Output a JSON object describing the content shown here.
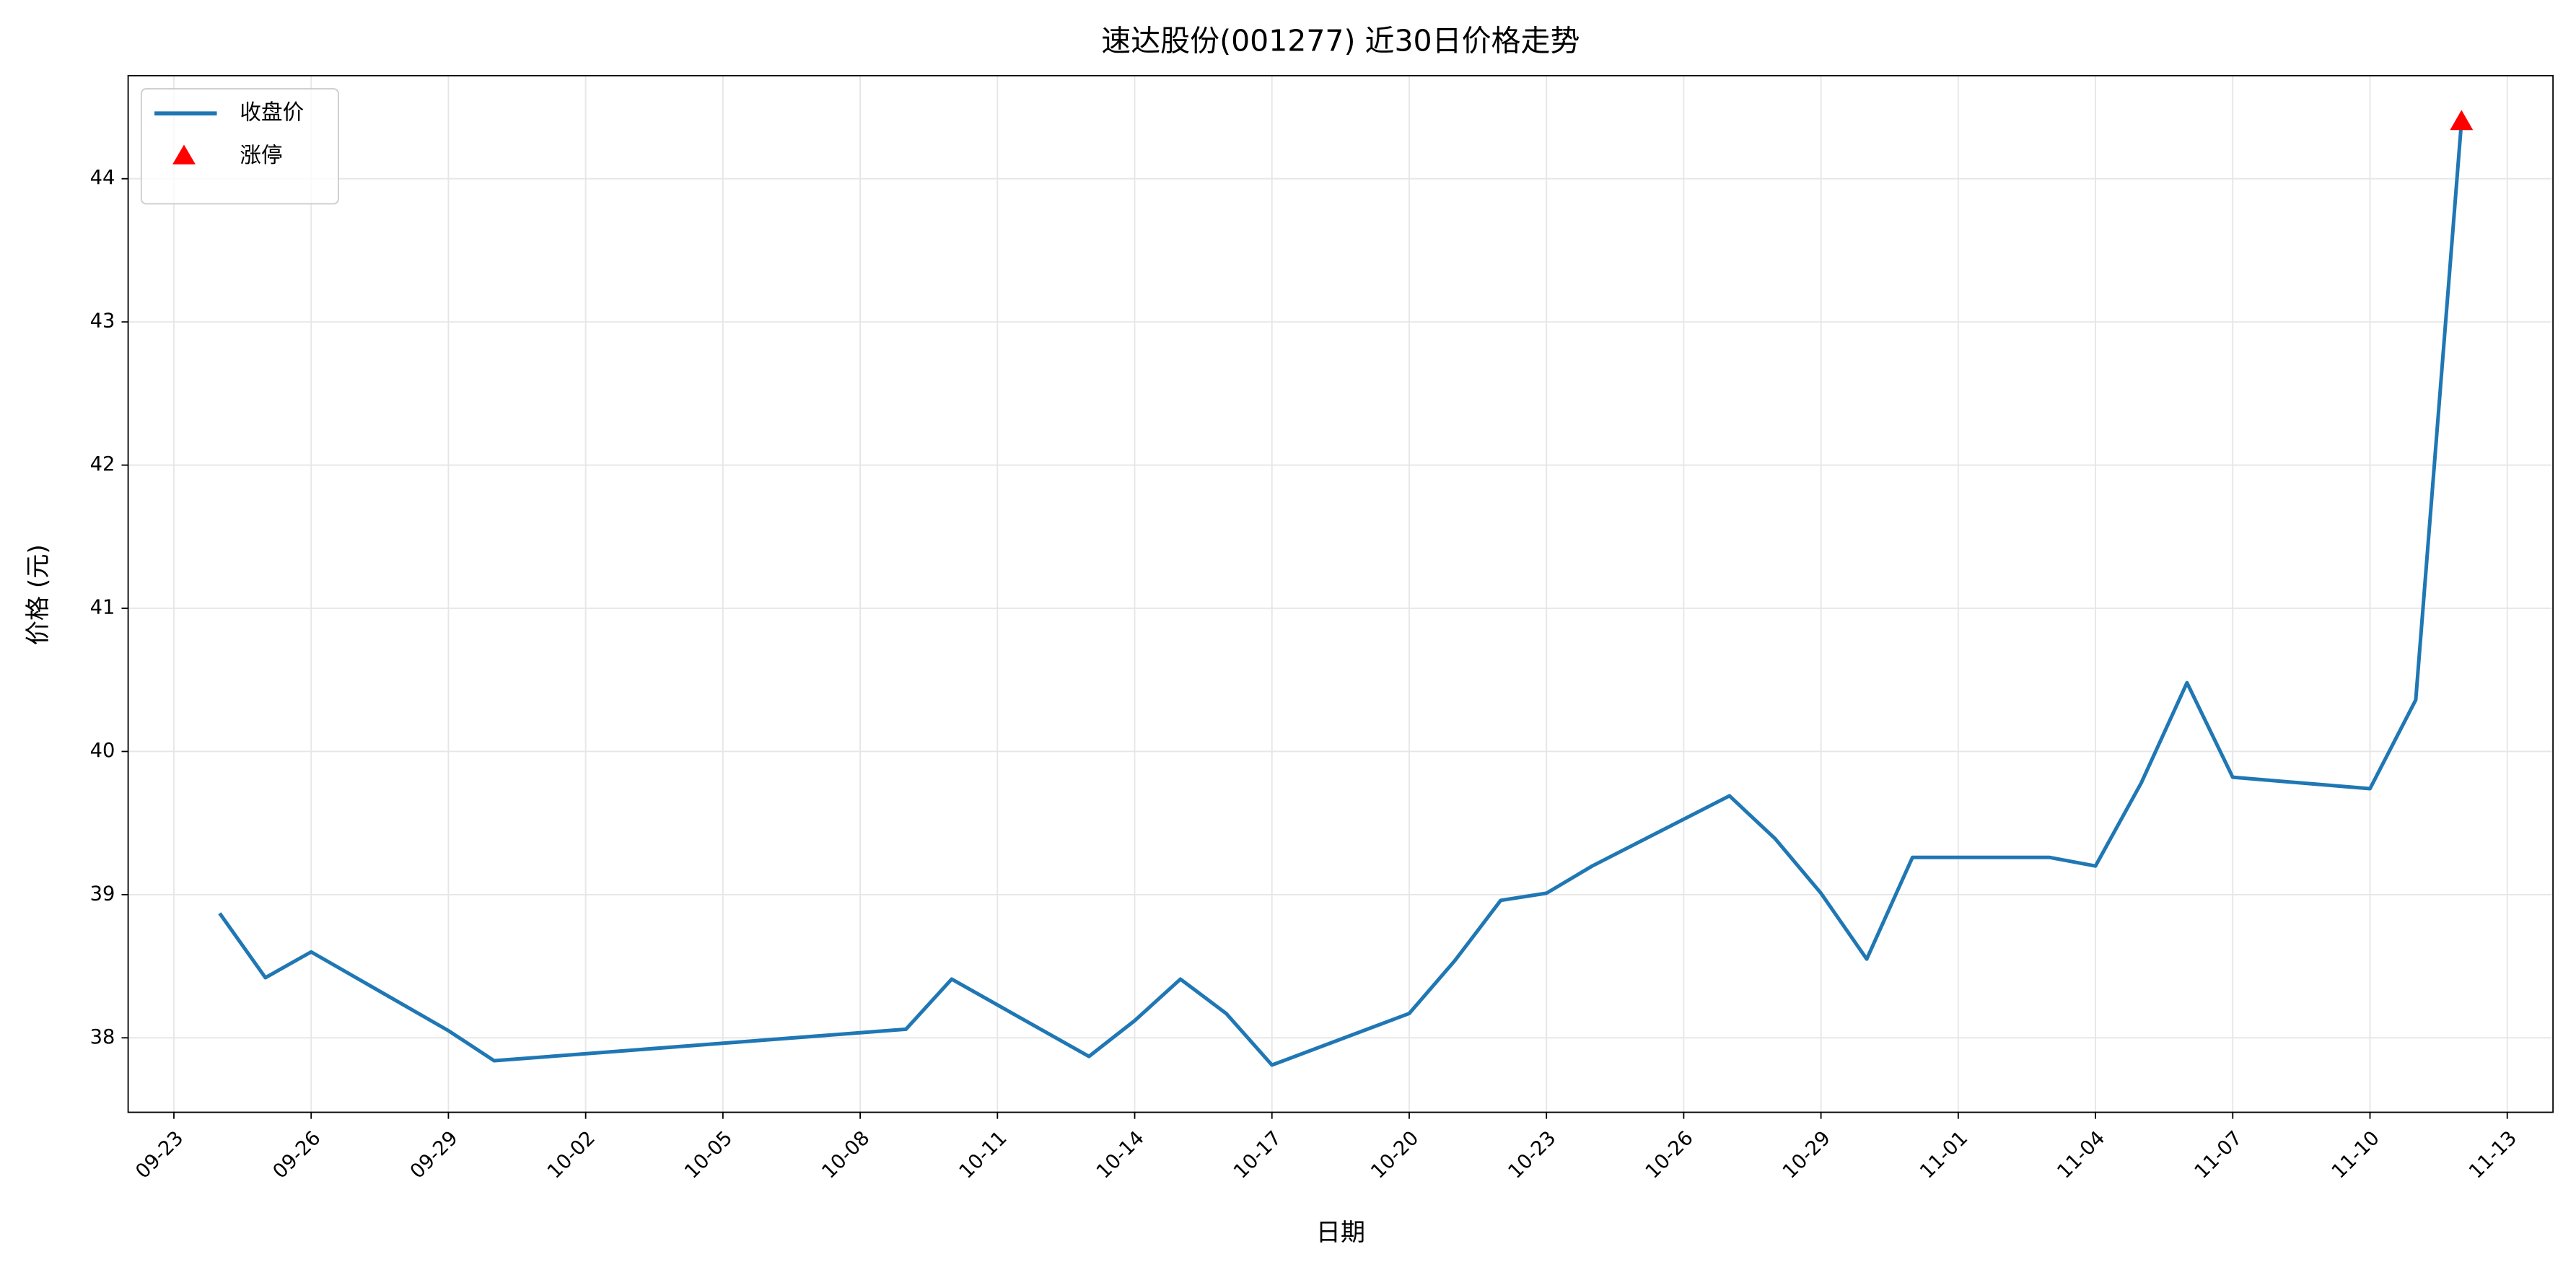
{
  "chart_data": {
    "type": "line",
    "title": "速达股份(001277) 近30日价格走势",
    "xlabel": "日期",
    "ylabel": "价格 (元)",
    "x": [
      "09-24",
      "09-25",
      "09-26",
      "09-29",
      "09-30",
      "10-09",
      "10-10",
      "10-13",
      "10-14",
      "10-15",
      "10-16",
      "10-17",
      "10-20",
      "10-21",
      "10-22",
      "10-23",
      "10-24",
      "10-27",
      "10-28",
      "10-29",
      "10-30",
      "10-31",
      "11-03",
      "11-04",
      "11-05",
      "11-06",
      "11-07",
      "11-10",
      "11-11",
      "11-12"
    ],
    "series": [
      {
        "name": "收盘价",
        "type": "line",
        "color": "#1f77b4",
        "values": [
          38.87,
          38.42,
          38.6,
          38.05,
          37.84,
          38.06,
          38.41,
          37.87,
          38.12,
          38.41,
          38.17,
          37.81,
          38.17,
          38.54,
          38.96,
          39.01,
          39.2,
          39.69,
          39.39,
          39.01,
          38.55,
          39.26,
          39.26,
          39.2,
          39.78,
          40.48,
          39.82,
          39.74,
          40.36,
          44.4
        ]
      },
      {
        "name": "涨停",
        "type": "scatter",
        "marker": "triangle",
        "color": "#ff0000",
        "x": [
          "11-12"
        ],
        "values": [
          44.4
        ]
      }
    ],
    "xlim": [
      "09-22",
      "11-14"
    ],
    "xticks": [
      "09-23",
      "09-26",
      "09-29",
      "10-02",
      "10-05",
      "10-08",
      "10-11",
      "10-14",
      "10-17",
      "10-20",
      "10-23",
      "10-26",
      "10-29",
      "11-01",
      "11-04",
      "11-07",
      "11-10",
      "11-13"
    ],
    "ylim": [
      37.48,
      44.72
    ],
    "yticks": [
      38,
      39,
      40,
      41,
      42,
      43,
      44
    ],
    "grid": true,
    "legend": "upper-left"
  }
}
